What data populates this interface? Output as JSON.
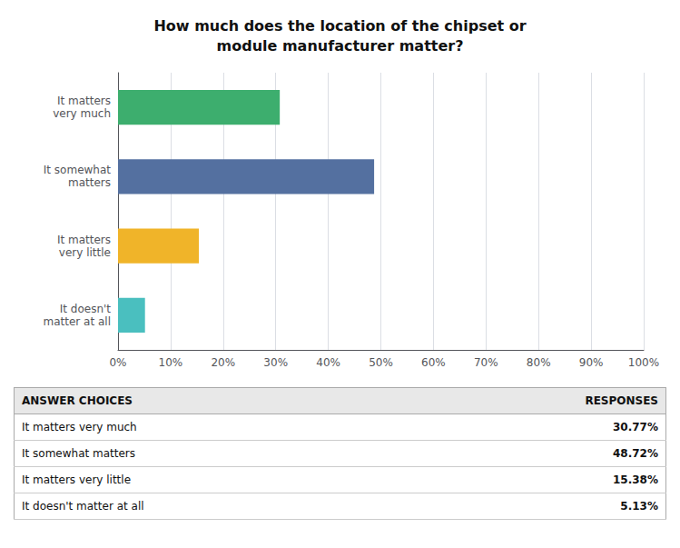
{
  "chart_data": {
    "type": "bar",
    "orientation": "horizontal",
    "title": "How much does the location of the chipset or\nmodule manufacturer matter?",
    "categories": [
      "It matters\nvery much",
      "It somewhat\nmatters",
      "It matters\nvery little",
      "It doesn't\nmatter at all"
    ],
    "values": [
      30.77,
      48.72,
      15.38,
      5.13
    ],
    "colors": [
      "#3dae6e",
      "#5470a0",
      "#f0b429",
      "#4abfbf"
    ],
    "xlim": [
      0,
      100
    ],
    "xticks": [
      {
        "value": 0,
        "label": "0%"
      },
      {
        "value": 10,
        "label": "10%"
      },
      {
        "value": 20,
        "label": "20%"
      },
      {
        "value": 30,
        "label": "30%"
      },
      {
        "value": 40,
        "label": "40%"
      },
      {
        "value": 50,
        "label": "50%"
      },
      {
        "value": 60,
        "label": "60%"
      },
      {
        "value": 70,
        "label": "70%"
      },
      {
        "value": 80,
        "label": "80%"
      },
      {
        "value": 90,
        "label": "90%"
      },
      {
        "value": 100,
        "label": "100%"
      }
    ],
    "grid": true,
    "table": {
      "headers": [
        "ANSWER CHOICES",
        "RESPONSES"
      ],
      "rows": [
        [
          "It matters very much",
          "30.77%"
        ],
        [
          "It somewhat matters",
          "48.72%"
        ],
        [
          "It matters very little",
          "15.38%"
        ],
        [
          "It doesn't matter at all",
          "5.13%"
        ]
      ]
    }
  }
}
